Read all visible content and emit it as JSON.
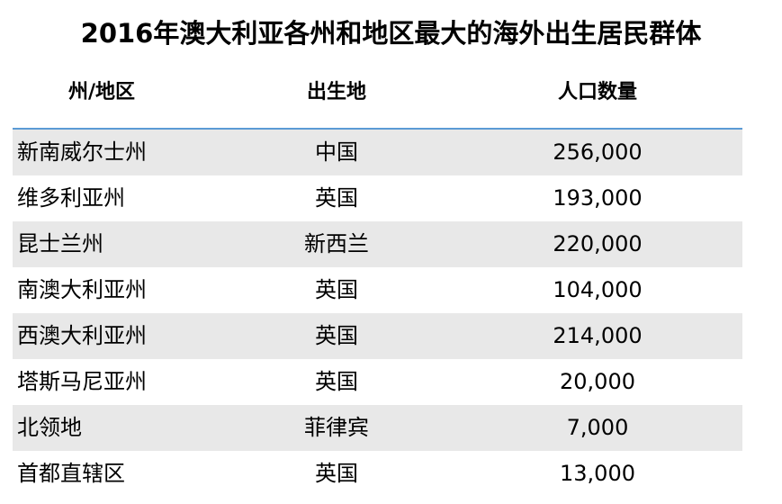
{
  "title": "2016年澳大利亚各州和地区最大的海外出生居民群体",
  "colors": {
    "header_rule": "#5b9bd5",
    "row_shade": "#e8e8e8"
  },
  "columns": [
    "州/地区",
    "出生地",
    "人口数量"
  ],
  "rows": [
    [
      "新南威尔士州",
      "中国",
      "256,000"
    ],
    [
      "维多利亚州",
      "英国",
      "193,000"
    ],
    [
      "昆士兰州",
      "新西兰",
      "220,000"
    ],
    [
      "南澳大利亚州",
      "英国",
      "104,000"
    ],
    [
      "西澳大利亚州",
      "英国",
      "214,000"
    ],
    [
      "塔斯马尼亚州",
      "英国",
      "20,000"
    ],
    [
      "北领地",
      "菲律宾",
      "7,000"
    ],
    [
      "首都直辖区",
      "英国",
      "13,000"
    ]
  ]
}
